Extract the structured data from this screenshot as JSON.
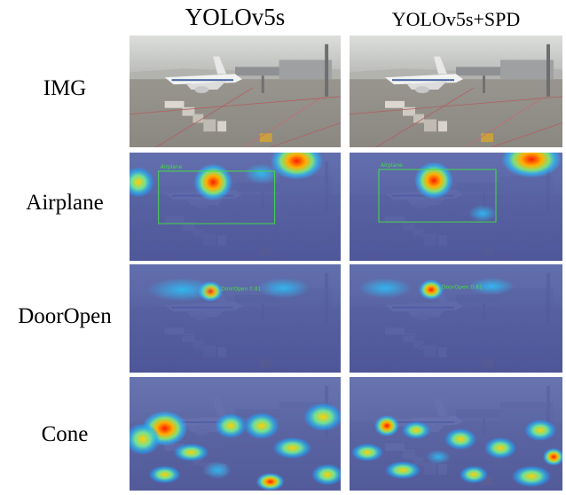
{
  "columns": [
    {
      "label": "YOLOv5s"
    },
    {
      "label": "YOLOv5s+SPD"
    }
  ],
  "rows": [
    {
      "label": "IMG"
    },
    {
      "label": "Airplane",
      "detection_label": "Airplane"
    },
    {
      "label": "DoorOpen",
      "detection_label": "DoorOpen 0.81"
    },
    {
      "label": "Cone"
    }
  ],
  "colors": {
    "heatmap_base": "#2c3a8c",
    "heatmap_hot": "#ff2a00",
    "detection_box": "#44dd44",
    "photo_ground": "#9a9691",
    "photo_sky": "#d6d8d6"
  }
}
